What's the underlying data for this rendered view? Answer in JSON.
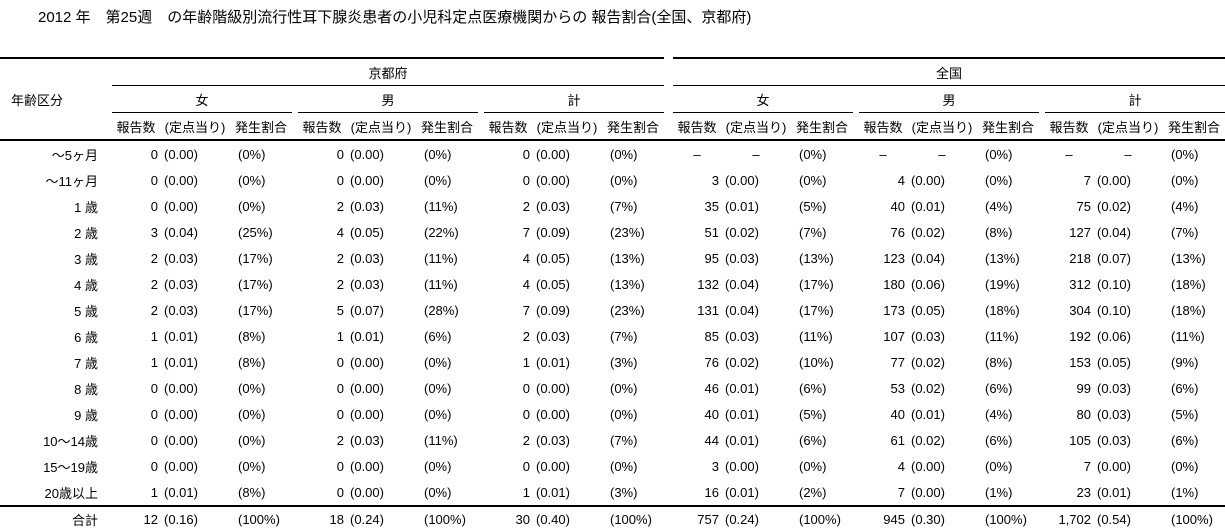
{
  "title": "2012 年　第25週　の年齢階級別流行性耳下腺炎患者の小児科定点医療機関からの 報告割合(全国、京都府)",
  "table": {
    "corner_label": "年齢区分",
    "regions": [
      "京都府",
      "全国"
    ],
    "genders": [
      "女",
      "男",
      "計"
    ],
    "metrics": [
      "報告数",
      "(定点当り)",
      "発生割合"
    ],
    "rows": [
      {
        "label": "～5ヶ月",
        "cells": [
          [
            "0",
            "(0.00)",
            "(0%)"
          ],
          [
            "0",
            "(0.00)",
            "(0%)"
          ],
          [
            "0",
            "(0.00)",
            "(0%)"
          ],
          [
            "–",
            "–",
            "(0%)"
          ],
          [
            "–",
            "–",
            "(0%)"
          ],
          [
            "–",
            "–",
            "(0%)"
          ]
        ]
      },
      {
        "label": "～11ヶ月",
        "cells": [
          [
            "0",
            "(0.00)",
            "(0%)"
          ],
          [
            "0",
            "(0.00)",
            "(0%)"
          ],
          [
            "0",
            "(0.00)",
            "(0%)"
          ],
          [
            "3",
            "(0.00)",
            "(0%)"
          ],
          [
            "4",
            "(0.00)",
            "(0%)"
          ],
          [
            "7",
            "(0.00)",
            "(0%)"
          ]
        ]
      },
      {
        "label": "1 歳",
        "cells": [
          [
            "0",
            "(0.00)",
            "(0%)"
          ],
          [
            "2",
            "(0.03)",
            "(11%)"
          ],
          [
            "2",
            "(0.03)",
            "(7%)"
          ],
          [
            "35",
            "(0.01)",
            "(5%)"
          ],
          [
            "40",
            "(0.01)",
            "(4%)"
          ],
          [
            "75",
            "(0.02)",
            "(4%)"
          ]
        ]
      },
      {
        "label": "2 歳",
        "cells": [
          [
            "3",
            "(0.04)",
            "(25%)"
          ],
          [
            "4",
            "(0.05)",
            "(22%)"
          ],
          [
            "7",
            "(0.09)",
            "(23%)"
          ],
          [
            "51",
            "(0.02)",
            "(7%)"
          ],
          [
            "76",
            "(0.02)",
            "(8%)"
          ],
          [
            "127",
            "(0.04)",
            "(7%)"
          ]
        ]
      },
      {
        "label": "3 歳",
        "cells": [
          [
            "2",
            "(0.03)",
            "(17%)"
          ],
          [
            "2",
            "(0.03)",
            "(11%)"
          ],
          [
            "4",
            "(0.05)",
            "(13%)"
          ],
          [
            "95",
            "(0.03)",
            "(13%)"
          ],
          [
            "123",
            "(0.04)",
            "(13%)"
          ],
          [
            "218",
            "(0.07)",
            "(13%)"
          ]
        ]
      },
      {
        "label": "4 歳",
        "cells": [
          [
            "2",
            "(0.03)",
            "(17%)"
          ],
          [
            "2",
            "(0.03)",
            "(11%)"
          ],
          [
            "4",
            "(0.05)",
            "(13%)"
          ],
          [
            "132",
            "(0.04)",
            "(17%)"
          ],
          [
            "180",
            "(0.06)",
            "(19%)"
          ],
          [
            "312",
            "(0.10)",
            "(18%)"
          ]
        ]
      },
      {
        "label": "5 歳",
        "cells": [
          [
            "2",
            "(0.03)",
            "(17%)"
          ],
          [
            "5",
            "(0.07)",
            "(28%)"
          ],
          [
            "7",
            "(0.09)",
            "(23%)"
          ],
          [
            "131",
            "(0.04)",
            "(17%)"
          ],
          [
            "173",
            "(0.05)",
            "(18%)"
          ],
          [
            "304",
            "(0.10)",
            "(18%)"
          ]
        ]
      },
      {
        "label": "6 歳",
        "cells": [
          [
            "1",
            "(0.01)",
            "(8%)"
          ],
          [
            "1",
            "(0.01)",
            "(6%)"
          ],
          [
            "2",
            "(0.03)",
            "(7%)"
          ],
          [
            "85",
            "(0.03)",
            "(11%)"
          ],
          [
            "107",
            "(0.03)",
            "(11%)"
          ],
          [
            "192",
            "(0.06)",
            "(11%)"
          ]
        ]
      },
      {
        "label": "7 歳",
        "cells": [
          [
            "1",
            "(0.01)",
            "(8%)"
          ],
          [
            "0",
            "(0.00)",
            "(0%)"
          ],
          [
            "1",
            "(0.01)",
            "(3%)"
          ],
          [
            "76",
            "(0.02)",
            "(10%)"
          ],
          [
            "77",
            "(0.02)",
            "(8%)"
          ],
          [
            "153",
            "(0.05)",
            "(9%)"
          ]
        ]
      },
      {
        "label": "8 歳",
        "cells": [
          [
            "0",
            "(0.00)",
            "(0%)"
          ],
          [
            "0",
            "(0.00)",
            "(0%)"
          ],
          [
            "0",
            "(0.00)",
            "(0%)"
          ],
          [
            "46",
            "(0.01)",
            "(6%)"
          ],
          [
            "53",
            "(0.02)",
            "(6%)"
          ],
          [
            "99",
            "(0.03)",
            "(6%)"
          ]
        ]
      },
      {
        "label": "9 歳",
        "cells": [
          [
            "0",
            "(0.00)",
            "(0%)"
          ],
          [
            "0",
            "(0.00)",
            "(0%)"
          ],
          [
            "0",
            "(0.00)",
            "(0%)"
          ],
          [
            "40",
            "(0.01)",
            "(5%)"
          ],
          [
            "40",
            "(0.01)",
            "(4%)"
          ],
          [
            "80",
            "(0.03)",
            "(5%)"
          ]
        ]
      },
      {
        "label": "10～14歳",
        "cells": [
          [
            "0",
            "(0.00)",
            "(0%)"
          ],
          [
            "2",
            "(0.03)",
            "(11%)"
          ],
          [
            "2",
            "(0.03)",
            "(7%)"
          ],
          [
            "44",
            "(0.01)",
            "(6%)"
          ],
          [
            "61",
            "(0.02)",
            "(6%)"
          ],
          [
            "105",
            "(0.03)",
            "(6%)"
          ]
        ]
      },
      {
        "label": "15～19歳",
        "cells": [
          [
            "0",
            "(0.00)",
            "(0%)"
          ],
          [
            "0",
            "(0.00)",
            "(0%)"
          ],
          [
            "0",
            "(0.00)",
            "(0%)"
          ],
          [
            "3",
            "(0.00)",
            "(0%)"
          ],
          [
            "4",
            "(0.00)",
            "(0%)"
          ],
          [
            "7",
            "(0.00)",
            "(0%)"
          ]
        ]
      },
      {
        "label": "20歳以上",
        "cells": [
          [
            "1",
            "(0.01)",
            "(8%)"
          ],
          [
            "0",
            "(0.00)",
            "(0%)"
          ],
          [
            "1",
            "(0.01)",
            "(3%)"
          ],
          [
            "16",
            "(0.01)",
            "(2%)"
          ],
          [
            "7",
            "(0.00)",
            "(1%)"
          ],
          [
            "23",
            "(0.01)",
            "(1%)"
          ]
        ]
      },
      {
        "label": "合計",
        "cells": [
          [
            "12",
            "(0.16)",
            "(100%)"
          ],
          [
            "18",
            "(0.24)",
            "(100%)"
          ],
          [
            "30",
            "(0.40)",
            "(100%)"
          ],
          [
            "757",
            "(0.24)",
            "(100%)"
          ],
          [
            "945",
            "(0.30)",
            "(100%)"
          ],
          [
            "1,702",
            "(0.54)",
            "(100%)"
          ]
        ]
      }
    ]
  }
}
